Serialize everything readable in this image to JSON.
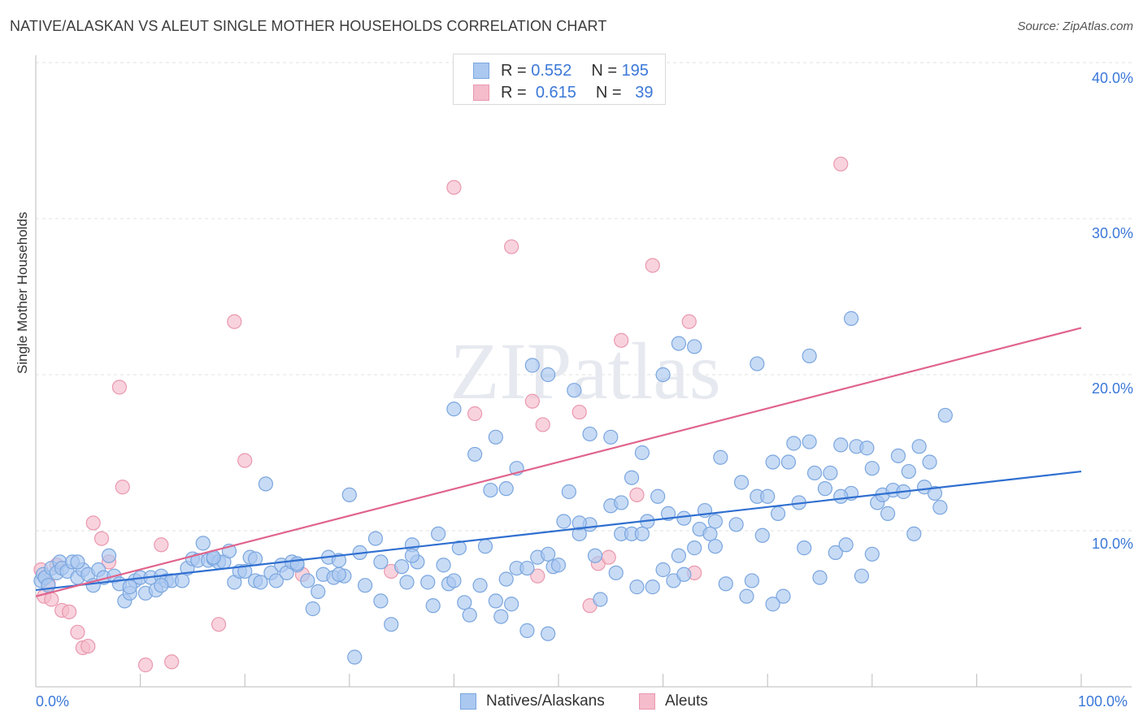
{
  "title": "NATIVE/ALASKAN VS ALEUT SINGLE MOTHER HOUSEHOLDS CORRELATION CHART",
  "source": "Source: ZipAtlas.com",
  "watermark": "ZIPatlas",
  "legend_top": {
    "rows": [
      {
        "r_label": "R =",
        "r_value": "0.552",
        "n_label": "N =",
        "n_value": "195"
      },
      {
        "r_label": "R =",
        "r_value": "0.615",
        "n_label": "N =",
        "n_value": "39"
      }
    ]
  },
  "legend_bottom": [
    "Natives/Alaskans",
    "Aleuts"
  ],
  "colors": {
    "blue_fill": "#aac8f0",
    "blue_stroke": "#7aa6df",
    "blue_line": "#2f6fd0",
    "pink_fill": "#f5bccb",
    "pink_stroke": "#ea98ae",
    "pink_line": "#e0648c",
    "tick_text": "#3b78d8",
    "grid": "#e2e2e2"
  },
  "chart_data": {
    "type": "scatter",
    "xlabel": "",
    "ylabel": "Single Mother Households",
    "xlim": [
      0,
      100
    ],
    "ylim": [
      0,
      42
    ],
    "x_tick_labels": [
      "0.0%",
      "100.0%"
    ],
    "y_ticks": [
      10,
      20,
      30,
      40
    ],
    "y_tick_labels": [
      "10.0%",
      "20.0%",
      "30.0%",
      "40.0%"
    ],
    "grid": true,
    "legend_position": "top-center",
    "series": [
      {
        "name": "Natives/Alaskans",
        "trend": {
          "x": [
            0,
            100
          ],
          "y": [
            6.2,
            13.8
          ]
        },
        "points": [
          [
            0.5,
            6.8
          ],
          [
            0.7,
            7.2
          ],
          [
            0.9,
            7.0
          ],
          [
            1.2,
            6.5
          ],
          [
            1.5,
            7.6
          ],
          [
            2.0,
            7.3
          ],
          [
            2.3,
            8.0
          ],
          [
            2.5,
            7.6
          ],
          [
            3.0,
            7.4
          ],
          [
            3.5,
            8.0
          ],
          [
            4.0,
            7.0
          ],
          [
            4.5,
            7.5
          ],
          [
            5.0,
            7.2
          ],
          [
            5.5,
            6.5
          ],
          [
            6.0,
            7.5
          ],
          [
            6.5,
            7.0
          ],
          [
            7.0,
            8.4
          ],
          [
            7.5,
            7.1
          ],
          [
            8.0,
            6.6
          ],
          [
            8.5,
            5.5
          ],
          [
            9.0,
            6.0
          ],
          [
            9.5,
            6.8
          ],
          [
            10.0,
            7.0
          ],
          [
            10.5,
            6.0
          ],
          [
            11.0,
            7.0
          ],
          [
            11.5,
            6.2
          ],
          [
            12.0,
            7.1
          ],
          [
            12.5,
            6.8
          ],
          [
            13.0,
            6.8
          ],
          [
            14.5,
            7.6
          ],
          [
            15.0,
            8.2
          ],
          [
            15.5,
            8.1
          ],
          [
            16.0,
            9.2
          ],
          [
            16.5,
            8.1
          ],
          [
            17.0,
            8.2
          ],
          [
            17.5,
            8.0
          ],
          [
            18.0,
            8.0
          ],
          [
            18.5,
            8.7
          ],
          [
            19.0,
            6.7
          ],
          [
            19.5,
            7.4
          ],
          [
            20.0,
            7.4
          ],
          [
            20.5,
            8.3
          ],
          [
            21.0,
            6.8
          ],
          [
            21.5,
            6.7
          ],
          [
            22.0,
            13.0
          ],
          [
            22.5,
            7.3
          ],
          [
            23.0,
            6.8
          ],
          [
            23.5,
            7.8
          ],
          [
            24.0,
            7.3
          ],
          [
            24.5,
            8.0
          ],
          [
            25.0,
            7.8
          ],
          [
            26.0,
            6.8
          ],
          [
            26.5,
            5.0
          ],
          [
            27.0,
            6.1
          ],
          [
            27.5,
            7.2
          ],
          [
            28.0,
            8.3
          ],
          [
            28.5,
            7.0
          ],
          [
            29.0,
            8.1
          ],
          [
            29.5,
            7.1
          ],
          [
            30.0,
            12.3
          ],
          [
            31.0,
            8.6
          ],
          [
            31.5,
            6.5
          ],
          [
            32.5,
            9.5
          ],
          [
            33.0,
            5.5
          ],
          [
            34.0,
            4.0
          ],
          [
            35.0,
            7.7
          ],
          [
            35.5,
            6.7
          ],
          [
            36.0,
            9.1
          ],
          [
            36.5,
            8.0
          ],
          [
            37.5,
            6.7
          ],
          [
            38.0,
            5.2
          ],
          [
            38.5,
            9.8
          ],
          [
            39.0,
            7.8
          ],
          [
            39.5,
            6.6
          ],
          [
            40.0,
            6.8
          ],
          [
            40.5,
            8.9
          ],
          [
            41.0,
            5.4
          ],
          [
            41.5,
            4.6
          ],
          [
            42.5,
            6.5
          ],
          [
            43.0,
            9.0
          ],
          [
            44.0,
            5.5
          ],
          [
            44.5,
            4.5
          ],
          [
            45.0,
            6.9
          ],
          [
            45.5,
            5.3
          ],
          [
            46.0,
            7.6
          ],
          [
            47.0,
            7.6
          ],
          [
            48.0,
            8.3
          ],
          [
            49.0,
            8.5
          ],
          [
            49.5,
            7.7
          ],
          [
            50.0,
            7.8
          ],
          [
            50.5,
            10.6
          ],
          [
            51.0,
            12.5
          ],
          [
            52.0,
            9.8
          ],
          [
            53.0,
            10.4
          ],
          [
            53.5,
            8.4
          ],
          [
            54.0,
            5.6
          ],
          [
            55.0,
            11.6
          ],
          [
            55.5,
            7.3
          ],
          [
            56.0,
            9.8
          ],
          [
            57.0,
            9.8
          ],
          [
            57.5,
            6.4
          ],
          [
            58.0,
            9.8
          ],
          [
            58.5,
            10.6
          ],
          [
            59.0,
            6.4
          ],
          [
            60.0,
            7.5
          ],
          [
            60.5,
            11.1
          ],
          [
            61.0,
            6.8
          ],
          [
            61.5,
            8.4
          ],
          [
            62.0,
            10.8
          ],
          [
            63.0,
            8.9
          ],
          [
            63.5,
            10.1
          ],
          [
            64.0,
            11.3
          ],
          [
            64.5,
            9.8
          ],
          [
            65.0,
            10.6
          ],
          [
            65.5,
            14.7
          ],
          [
            66.0,
            6.6
          ],
          [
            67.0,
            10.4
          ],
          [
            67.5,
            13.1
          ],
          [
            68.0,
            5.8
          ],
          [
            68.5,
            6.8
          ],
          [
            69.0,
            12.2
          ],
          [
            69.5,
            9.7
          ],
          [
            70.0,
            12.2
          ],
          [
            70.5,
            14.4
          ],
          [
            71.0,
            11.1
          ],
          [
            71.5,
            5.8
          ],
          [
            72.0,
            14.4
          ],
          [
            72.5,
            15.6
          ],
          [
            73.0,
            11.8
          ],
          [
            73.5,
            8.9
          ],
          [
            74.0,
            15.7
          ],
          [
            74.5,
            13.7
          ],
          [
            75.0,
            7.0
          ],
          [
            75.5,
            12.7
          ],
          [
            76.0,
            13.7
          ],
          [
            76.5,
            8.6
          ],
          [
            77.0,
            15.5
          ],
          [
            77.5,
            9.1
          ],
          [
            78.0,
            12.4
          ],
          [
            78.5,
            15.4
          ],
          [
            79.0,
            7.1
          ],
          [
            79.5,
            15.3
          ],
          [
            80.0,
            14.0
          ],
          [
            80.5,
            11.8
          ],
          [
            81.0,
            12.3
          ],
          [
            81.5,
            11.1
          ],
          [
            82.0,
            12.6
          ],
          [
            82.5,
            14.8
          ],
          [
            83.0,
            12.5
          ],
          [
            83.5,
            13.8
          ],
          [
            84.0,
            9.8
          ],
          [
            84.5,
            15.4
          ],
          [
            85.0,
            12.8
          ],
          [
            85.5,
            14.4
          ],
          [
            86.0,
            12.4
          ],
          [
            86.5,
            11.5
          ],
          [
            87.0,
            17.4
          ],
          [
            4.0,
            8.0
          ],
          [
            9.0,
            6.4
          ],
          [
            12.0,
            6.5
          ],
          [
            14.0,
            6.8
          ],
          [
            17.0,
            8.3
          ],
          [
            21.0,
            8.2
          ],
          [
            25.0,
            7.9
          ],
          [
            29.0,
            7.2
          ],
          [
            33.0,
            8.0
          ],
          [
            36.0,
            8.4
          ],
          [
            40.0,
            17.8
          ],
          [
            42.0,
            14.9
          ],
          [
            43.5,
            12.6
          ],
          [
            44.0,
            16.0
          ],
          [
            45.0,
            12.7
          ],
          [
            46.0,
            14.0
          ],
          [
            47.5,
            20.6
          ],
          [
            49.0,
            20.0
          ],
          [
            51.5,
            19.0
          ],
          [
            53.0,
            16.2
          ],
          [
            55.0,
            16.0
          ],
          [
            57.0,
            13.4
          ],
          [
            58.0,
            15.0
          ],
          [
            60.0,
            20.0
          ],
          [
            61.5,
            22.0
          ],
          [
            63.0,
            21.8
          ],
          [
            69.0,
            20.7
          ],
          [
            74.0,
            21.2
          ],
          [
            77.0,
            12.2
          ],
          [
            78.0,
            23.6
          ],
          [
            47.0,
            3.6
          ],
          [
            49.0,
            3.4
          ],
          [
            30.5,
            1.9
          ],
          [
            70.5,
            5.3
          ],
          [
            80.0,
            8.5
          ],
          [
            65.0,
            9.0
          ],
          [
            62.0,
            7.2
          ],
          [
            52.0,
            10.5
          ],
          [
            56.0,
            11.8
          ],
          [
            59.5,
            12.2
          ]
        ]
      },
      {
        "name": "Aleuts",
        "trend": {
          "x": [
            0,
            100
          ],
          "y": [
            5.8,
            23.0
          ]
        },
        "points": [
          [
            0.5,
            7.5
          ],
          [
            0.8,
            5.8
          ],
          [
            1.2,
            6.6
          ],
          [
            1.5,
            5.6
          ],
          [
            2.0,
            7.8
          ],
          [
            2.5,
            4.9
          ],
          [
            3.2,
            4.8
          ],
          [
            4.0,
            3.5
          ],
          [
            4.5,
            2.5
          ],
          [
            5.0,
            2.6
          ],
          [
            5.5,
            10.5
          ],
          [
            6.3,
            9.5
          ],
          [
            7.0,
            8.0
          ],
          [
            8.0,
            19.2
          ],
          [
            8.3,
            12.8
          ],
          [
            10.5,
            1.4
          ],
          [
            12.0,
            9.1
          ],
          [
            13.0,
            1.6
          ],
          [
            17.5,
            4.0
          ],
          [
            19.0,
            23.4
          ],
          [
            20.0,
            14.5
          ],
          [
            25.5,
            7.2
          ],
          [
            34.0,
            7.4
          ],
          [
            40.0,
            32.0
          ],
          [
            42.0,
            17.5
          ],
          [
            45.5,
            28.2
          ],
          [
            47.5,
            18.3
          ],
          [
            48.5,
            16.8
          ],
          [
            52.0,
            17.6
          ],
          [
            53.0,
            5.2
          ],
          [
            53.8,
            7.9
          ],
          [
            54.8,
            8.3
          ],
          [
            56.0,
            22.2
          ],
          [
            57.5,
            12.3
          ],
          [
            59.0,
            27.0
          ],
          [
            62.5,
            23.4
          ],
          [
            63.0,
            7.3
          ],
          [
            77.0,
            33.5
          ],
          [
            48.0,
            7.1
          ]
        ]
      }
    ]
  }
}
